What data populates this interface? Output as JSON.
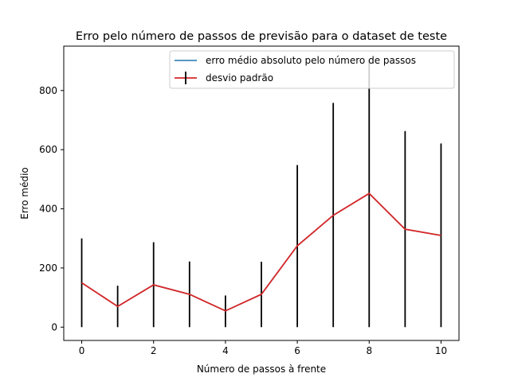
{
  "chart_data": {
    "type": "line",
    "title": "Erro pelo número de passos de previsão para o dataset de teste",
    "xlabel": "Número de passos à frente",
    "ylabel": "Erro médio",
    "xlim": [
      -0.5,
      10.5
    ],
    "ylim": [
      -45,
      950
    ],
    "x_ticks": [
      0,
      2,
      4,
      6,
      8,
      10
    ],
    "y_ticks": [
      0,
      200,
      400,
      600,
      800
    ],
    "grid": false,
    "legend_position": "top-right",
    "x": [
      0,
      1,
      2,
      3,
      4,
      5,
      6,
      7,
      8,
      9,
      10
    ],
    "series": [
      {
        "name": "erro médio absoluto pelo número de passos",
        "color": "#1f77b4",
        "values": [
          150,
          70,
          143,
          111,
          55,
          111,
          275,
          378,
          452,
          331,
          310
        ]
      },
      {
        "name": "desvio padrão",
        "color": "#d62728",
        "errorbar_color": "#000000",
        "values": [
          150,
          70,
          143,
          111,
          55,
          111,
          275,
          378,
          452,
          331,
          310
        ],
        "error_low": [
          0,
          0,
          0,
          0,
          0,
          0,
          0,
          0,
          0,
          0,
          0
        ],
        "error_high": [
          300,
          140,
          287,
          222,
          107,
          221,
          548,
          758,
          905,
          663,
          621
        ]
      }
    ]
  }
}
